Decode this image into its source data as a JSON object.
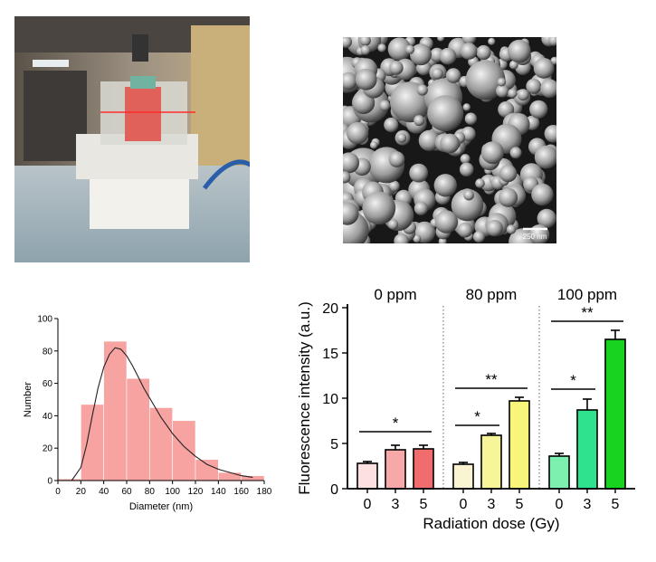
{
  "sem": {
    "scale_label": "250 nm"
  },
  "chart_data": [
    {
      "type": "bar",
      "categories": [
        "0-20",
        "20-40",
        "40-60",
        "60-80",
        "80-100",
        "100-120",
        "120-140",
        "140-160",
        "160-180"
      ],
      "bins": [
        [
          0,
          20
        ],
        [
          20,
          40
        ],
        [
          40,
          60
        ],
        [
          60,
          80
        ],
        [
          80,
          100
        ],
        [
          100,
          120
        ],
        [
          120,
          140
        ],
        [
          140,
          160
        ],
        [
          160,
          180
        ]
      ],
      "values": [
        1,
        47,
        86,
        63,
        45,
        37,
        13,
        5,
        3
      ],
      "fit_curve": {
        "x": [
          12,
          20,
          25,
          30,
          35,
          40,
          45,
          50,
          55,
          60,
          65,
          70,
          75,
          80,
          85,
          90,
          95,
          100,
          110,
          120,
          130,
          140,
          150,
          160,
          170
        ],
        "y": [
          0,
          8,
          22,
          40,
          57,
          70,
          78,
          82,
          81,
          77,
          71,
          64,
          57,
          51,
          45,
          39,
          34,
          29,
          21,
          15,
          10,
          7,
          5,
          3,
          2
        ]
      },
      "title": "",
      "xlabel": "Diameter (nm)",
      "ylabel": "Number",
      "xlim": [
        0,
        180
      ],
      "ylim": [
        0,
        100
      ],
      "xticks": [
        0,
        20,
        40,
        60,
        80,
        100,
        120,
        140,
        160,
        180
      ],
      "yticks": [
        0,
        20,
        40,
        60,
        80,
        100
      ],
      "grid": false,
      "bar_color": "#f6a3a1",
      "curve_color": "#222222"
    },
    {
      "type": "bar",
      "groups": [
        {
          "label": "0 ppm",
          "categories": [
            "0",
            "3",
            "5"
          ],
          "values": [
            2.8,
            4.3,
            4.4
          ],
          "errors": [
            0.2,
            0.5,
            0.4
          ],
          "colors": [
            "#fde0e0",
            "#f7a8a8",
            "#f16d6d"
          ]
        },
        {
          "label": "80 ppm",
          "categories": [
            "0",
            "3",
            "5"
          ],
          "values": [
            2.7,
            5.9,
            9.7
          ],
          "errors": [
            0.2,
            0.2,
            0.4
          ],
          "colors": [
            "#fbf4d2",
            "#f7f59a",
            "#f7f57a"
          ]
        },
        {
          "label": "100 ppm",
          "categories": [
            "0",
            "3",
            "5"
          ],
          "values": [
            3.6,
            8.7,
            16.5
          ],
          "errors": [
            0.3,
            1.2,
            1.0
          ],
          "colors": [
            "#7df0b0",
            "#2ee28e",
            "#19d41f"
          ]
        }
      ],
      "significance": [
        {
          "group": 0,
          "from": "0",
          "to": "5",
          "label": "*",
          "y": 6.3
        },
        {
          "group": 1,
          "from": "0",
          "to": "3",
          "label": "*",
          "y": 7.0
        },
        {
          "group": 1,
          "from": "0",
          "to": "5",
          "label": "**",
          "y": 11.1
        },
        {
          "group": 2,
          "from": "0",
          "to": "3",
          "label": "*",
          "y": 11.0
        },
        {
          "group": 2,
          "from": "0",
          "to": "5",
          "label": "**",
          "y": 18.5
        }
      ],
      "title": "",
      "xlabel": "Radiation dose (Gy)",
      "ylabel": "Fluorescence intensity (a.u.)",
      "ylim": [
        0,
        20
      ],
      "yticks": [
        0,
        5,
        10,
        15,
        20
      ],
      "grid": false
    }
  ]
}
